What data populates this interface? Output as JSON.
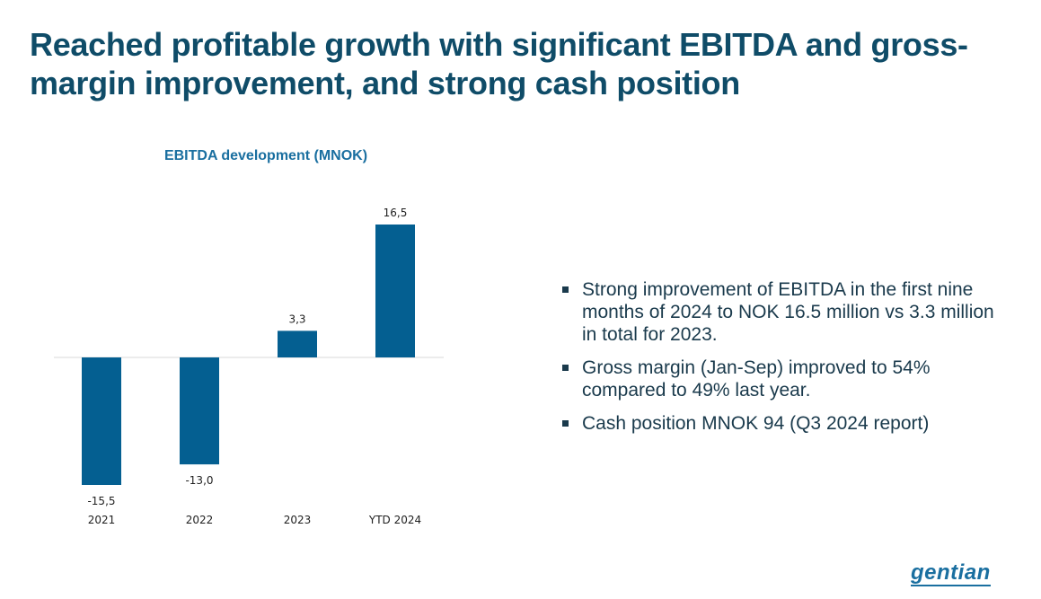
{
  "slide": {
    "title": "Reached profitable growth with significant EBITDA and gross-margin improvement, and strong cash position"
  },
  "chart_data": {
    "type": "bar",
    "title": "EBITDA development (MNOK)",
    "categories": [
      "2021",
      "2022",
      "2023",
      "YTD 2024"
    ],
    "values": [
      -15.5,
      -13.0,
      3.3,
      16.5
    ],
    "value_labels": [
      "-15,5",
      "-13,0",
      "3,3",
      "16,5"
    ],
    "xlabel": "",
    "ylabel": "",
    "ylim": [
      -15.5,
      16.5
    ],
    "grid": false,
    "bar_color": "#045f91"
  },
  "bullets": [
    {
      "text": "Strong improvement of EBITDA in the first nine months of 2024 to NOK 16.5 million vs 3.3 million in total for 2023."
    },
    {
      "text": "Gross margin (Jan-Sep) improved to 54% compared to 49% last year."
    },
    {
      "text": "Cash position MNOK 94 (Q3 2024 report)"
    }
  ],
  "logo": {
    "text": "gentian"
  },
  "colors": {
    "title": "#0f4c68",
    "chart_title": "#1a6fa0",
    "bar": "#045f91",
    "logo": "#1a6fa0"
  }
}
